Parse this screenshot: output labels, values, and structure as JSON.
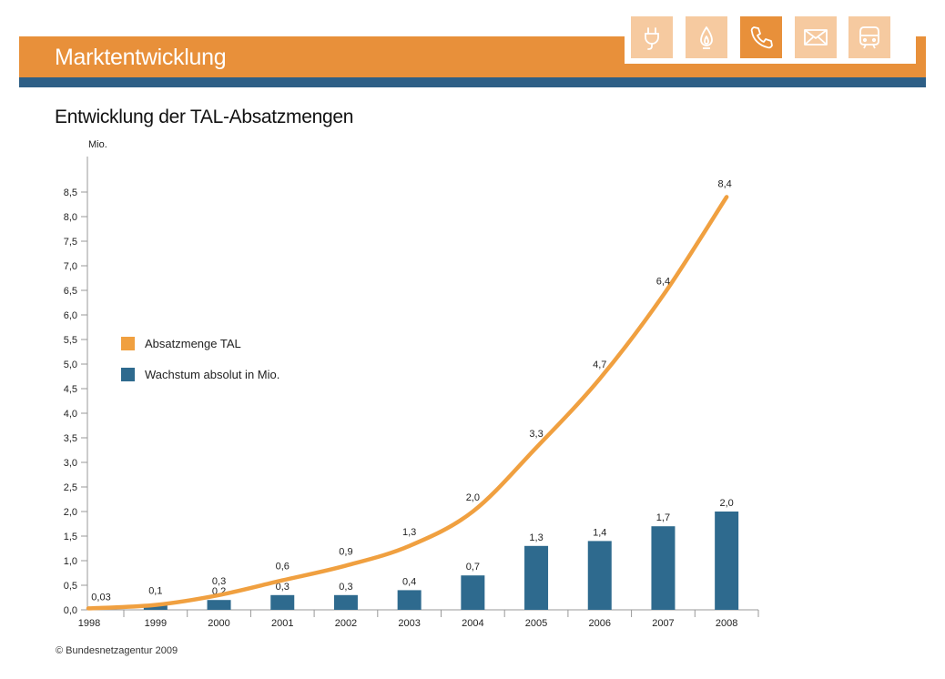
{
  "header": {
    "title": "Marktentwicklung",
    "icons": [
      {
        "name": "plug-icon",
        "active": false
      },
      {
        "name": "flame-icon",
        "active": false
      },
      {
        "name": "phone-icon",
        "active": true
      },
      {
        "name": "mail-icon",
        "active": false
      },
      {
        "name": "train-icon",
        "active": false
      }
    ]
  },
  "colors": {
    "orange": "#e8903a",
    "orange_light": "#f6caa0",
    "blue": "#2e6a8e",
    "stripe": "#2e5f86",
    "line": "#f0a040"
  },
  "footer": "© Bundesnetzagentur 2009",
  "chart_data": {
    "type": "bar+line",
    "title": "Entwicklung der TAL-Absatzmengen",
    "ylabel": "Mio.",
    "xlabel": "",
    "ylim": [
      0,
      9
    ],
    "yticks": [
      "0,0",
      "0,5",
      "1,0",
      "1,5",
      "2,0",
      "2,5",
      "3,0",
      "3,5",
      "4,0",
      "4,5",
      "5,0",
      "5,5",
      "6,0",
      "6,5",
      "7,0",
      "7,5",
      "8,0",
      "8,5"
    ],
    "categories": [
      "1998",
      "1999",
      "2000",
      "2001",
      "2002",
      "2003",
      "2004",
      "2005",
      "2006",
      "2007",
      "2008"
    ],
    "legend_position": "left-middle",
    "series": [
      {
        "name": "Absatzmenge TAL",
        "type": "line",
        "values": [
          0.03,
          0.1,
          0.3,
          0.6,
          0.9,
          1.3,
          2.0,
          3.3,
          4.7,
          6.4,
          8.4
        ],
        "labels": [
          "0,03",
          "0,1",
          "0,3",
          "0,6",
          "0,9",
          "1,3",
          "2,0",
          "3,3",
          "4,7",
          "6,4",
          "8,4"
        ]
      },
      {
        "name": "Wachstum absolut in Mio.",
        "type": "bar",
        "values": [
          null,
          0.1,
          0.2,
          0.3,
          0.3,
          0.4,
          0.7,
          1.3,
          1.4,
          1.7,
          2.0
        ],
        "labels": [
          "",
          "",
          "0,2",
          "0,3",
          "0,3",
          "0,4",
          "0,7",
          "1,3",
          "1,4",
          "1,7",
          "2,0"
        ]
      }
    ]
  }
}
